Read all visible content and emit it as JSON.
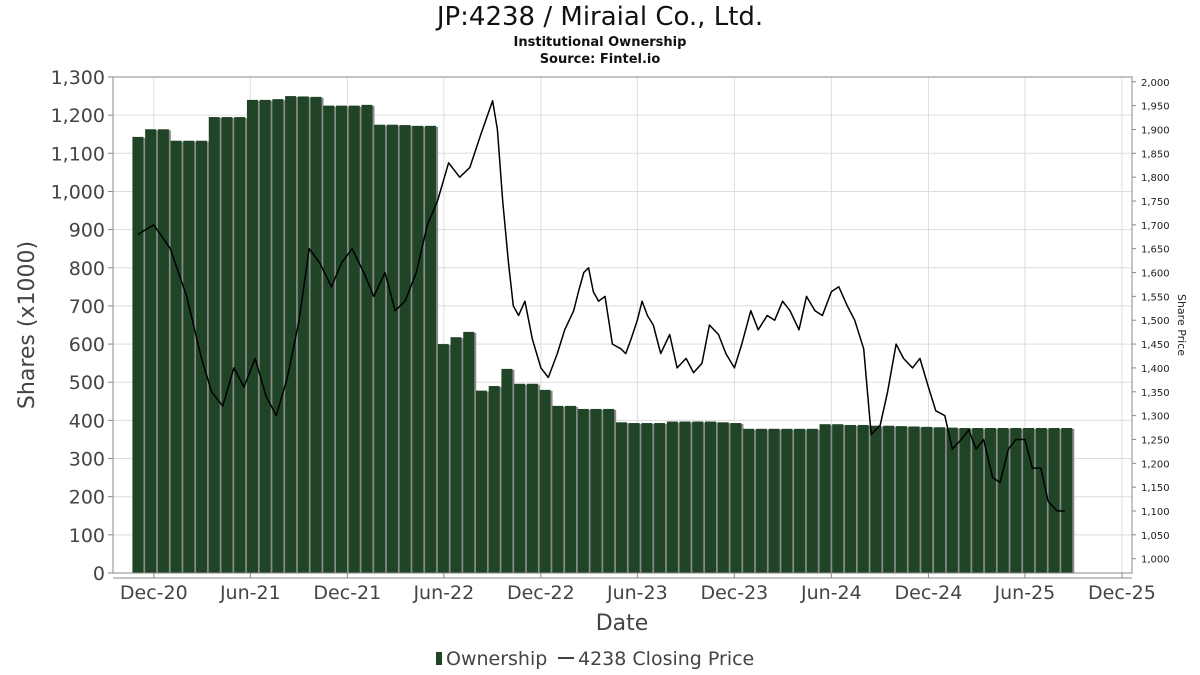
{
  "title": "JP:4238 / Miraial Co., Ltd.",
  "subtitle": "Institutional Ownership",
  "source": "Source: Fintel.io",
  "colors": {
    "bar": "#1f4426",
    "bar_shadow": "#8a8a8a",
    "line": "#000000",
    "grid": "#dddddd",
    "frame": "#888888"
  },
  "chart_data": {
    "type": "bar",
    "xlabel": "Date",
    "ylabel": "Shares (x1000)",
    "y2label": "Share Price",
    "ylim": [
      0,
      1300
    ],
    "y2lim": [
      970,
      2010
    ],
    "xlim": [
      "2020-09-15",
      "2025-12-20"
    ],
    "xticks": [
      {
        "date": "2020-12-01",
        "label": "Dec-20"
      },
      {
        "date": "2021-06-01",
        "label": "Jun-21"
      },
      {
        "date": "2021-12-01",
        "label": "Dec-21"
      },
      {
        "date": "2022-06-01",
        "label": "Jun-22"
      },
      {
        "date": "2022-12-01",
        "label": "Dec-22"
      },
      {
        "date": "2023-06-01",
        "label": "Jun-23"
      },
      {
        "date": "2023-12-01",
        "label": "Dec-23"
      },
      {
        "date": "2024-06-01",
        "label": "Jun-24"
      },
      {
        "date": "2024-12-01",
        "label": "Dec-24"
      },
      {
        "date": "2025-06-01",
        "label": "Jun-25"
      },
      {
        "date": "2025-12-01",
        "label": "Dec-25"
      }
    ],
    "yticks": [
      {
        "value": 0,
        "label": "0"
      },
      {
        "value": 100,
        "label": "100"
      },
      {
        "value": 200,
        "label": "200"
      },
      {
        "value": 300,
        "label": "300"
      },
      {
        "value": 400,
        "label": "400"
      },
      {
        "value": 500,
        "label": "500"
      },
      {
        "value": 600,
        "label": "600"
      },
      {
        "value": 700,
        "label": "700"
      },
      {
        "value": 800,
        "label": "800"
      },
      {
        "value": 900,
        "label": "900"
      },
      {
        "value": 1000,
        "label": "1,000"
      },
      {
        "value": 1100,
        "label": "1,100"
      },
      {
        "value": 1200,
        "label": "1,200"
      },
      {
        "value": 1300,
        "label": "1,300"
      }
    ],
    "y2ticks": [
      {
        "value": 1000,
        "label": "1,000"
      },
      {
        "value": 1050,
        "label": "1,050"
      },
      {
        "value": 1100,
        "label": "1,100"
      },
      {
        "value": 1150,
        "label": "1,150"
      },
      {
        "value": 1200,
        "label": "1,200"
      },
      {
        "value": 1250,
        "label": "1,250"
      },
      {
        "value": 1300,
        "label": "1,300"
      },
      {
        "value": 1350,
        "label": "1,350"
      },
      {
        "value": 1400,
        "label": "1,400"
      },
      {
        "value": 1450,
        "label": "1,450"
      },
      {
        "value": 1500,
        "label": "1,500"
      },
      {
        "value": 1550,
        "label": "1,550"
      },
      {
        "value": 1600,
        "label": "1,600"
      },
      {
        "value": 1650,
        "label": "1,650"
      },
      {
        "value": 1700,
        "label": "1,700"
      },
      {
        "value": 1750,
        "label": "1,750"
      },
      {
        "value": 1800,
        "label": "1,800"
      },
      {
        "value": 1850,
        "label": "1,850"
      },
      {
        "value": 1900,
        "label": "1,900"
      },
      {
        "value": 1950,
        "label": "1,950"
      },
      {
        "value": 2000,
        "label": "2,000"
      }
    ],
    "legend": {
      "position": "bottom",
      "items": [
        {
          "label": "Ownership",
          "kind": "bar"
        },
        {
          "label": "4238 Closing Price",
          "kind": "line"
        }
      ]
    },
    "series": [
      {
        "name": "Ownership",
        "kind": "bar",
        "x": [
          "2020-11-01",
          "2020-11-25",
          "2020-12-19",
          "2021-01-12",
          "2021-02-05",
          "2021-03-01",
          "2021-03-25",
          "2021-04-18",
          "2021-05-12",
          "2021-06-05",
          "2021-06-29",
          "2021-07-23",
          "2021-08-16",
          "2021-09-09",
          "2021-10-03",
          "2021-10-27",
          "2021-11-20",
          "2021-12-14",
          "2022-01-07",
          "2022-01-31",
          "2022-02-24",
          "2022-03-20",
          "2022-04-13",
          "2022-05-07",
          "2022-05-31",
          "2022-06-24",
          "2022-07-18",
          "2022-08-11",
          "2022-09-04",
          "2022-09-28",
          "2022-10-22",
          "2022-11-15",
          "2022-12-09",
          "2023-01-02",
          "2023-01-26",
          "2023-02-19",
          "2023-03-15",
          "2023-04-08",
          "2023-05-02",
          "2023-05-26",
          "2023-06-19",
          "2023-07-13",
          "2023-08-06",
          "2023-08-30",
          "2023-09-23",
          "2023-10-17",
          "2023-11-10",
          "2023-12-04",
          "2023-12-28",
          "2024-01-21",
          "2024-02-14",
          "2024-03-09",
          "2024-04-02",
          "2024-04-26",
          "2024-05-20",
          "2024-06-13",
          "2024-07-07",
          "2024-07-31",
          "2024-08-24",
          "2024-09-17",
          "2024-10-11",
          "2024-11-04",
          "2024-11-28",
          "2024-12-22",
          "2025-01-15",
          "2025-02-08",
          "2025-03-04",
          "2025-03-28",
          "2025-04-21",
          "2025-05-15",
          "2025-06-08",
          "2025-07-02",
          "2025-07-26",
          "2025-08-19"
        ],
        "values": [
          1143,
          1163,
          1163,
          1133,
          1133,
          1133,
          1195,
          1195,
          1195,
          1240,
          1240,
          1242,
          1250,
          1249,
          1248,
          1225,
          1225,
          1225,
          1227,
          1175,
          1175,
          1174,
          1172,
          1172,
          600,
          618,
          632,
          478,
          490,
          535,
          496,
          496,
          480,
          438,
          438,
          430,
          430,
          430,
          395,
          393,
          393,
          393,
          397,
          397,
          397,
          397,
          395,
          393,
          378,
          378,
          378,
          378,
          378,
          378,
          390,
          390,
          388,
          388,
          386,
          386,
          385,
          384,
          383,
          382,
          381,
          380,
          380,
          380,
          380,
          380,
          380,
          380,
          380,
          380
        ]
      },
      {
        "name": "4238 Closing Price",
        "kind": "line",
        "x": [
          "2020-11-01",
          "2020-12-01",
          "2021-01-01",
          "2021-02-01",
          "2021-03-01",
          "2021-03-20",
          "2021-04-10",
          "2021-05-01",
          "2021-05-20",
          "2021-06-10",
          "2021-07-01",
          "2021-07-20",
          "2021-08-10",
          "2021-09-01",
          "2021-09-20",
          "2021-10-10",
          "2021-11-01",
          "2021-11-20",
          "2021-12-10",
          "2022-01-01",
          "2022-01-20",
          "2022-02-10",
          "2022-03-01",
          "2022-03-20",
          "2022-04-10",
          "2022-05-01",
          "2022-05-20",
          "2022-06-10",
          "2022-07-01",
          "2022-07-20",
          "2022-08-10",
          "2022-09-01",
          "2022-09-10",
          "2022-09-20",
          "2022-10-01",
          "2022-10-10",
          "2022-10-20",
          "2022-11-01",
          "2022-11-15",
          "2022-12-01",
          "2022-12-15",
          "2023-01-01",
          "2023-01-15",
          "2023-02-01",
          "2023-02-10",
          "2023-02-20",
          "2023-03-01",
          "2023-03-10",
          "2023-03-20",
          "2023-04-01",
          "2023-04-15",
          "2023-05-01",
          "2023-05-10",
          "2023-05-20",
          "2023-06-01",
          "2023-06-10",
          "2023-06-20",
          "2023-07-01",
          "2023-07-15",
          "2023-08-01",
          "2023-08-15",
          "2023-09-01",
          "2023-09-15",
          "2023-10-01",
          "2023-10-15",
          "2023-11-01",
          "2023-11-15",
          "2023-12-01",
          "2023-12-15",
          "2024-01-01",
          "2024-01-15",
          "2024-02-01",
          "2024-02-15",
          "2024-03-01",
          "2024-03-15",
          "2024-04-01",
          "2024-04-15",
          "2024-05-01",
          "2024-05-15",
          "2024-06-01",
          "2024-06-15",
          "2024-07-01",
          "2024-07-15",
          "2024-08-01",
          "2024-08-15",
          "2024-09-01",
          "2024-09-15",
          "2024-10-01",
          "2024-10-15",
          "2024-11-01",
          "2024-11-15",
          "2024-12-01",
          "2024-12-15",
          "2025-01-01",
          "2025-01-15",
          "2025-02-01",
          "2025-02-15",
          "2025-03-01",
          "2025-03-15",
          "2025-04-01",
          "2025-04-15",
          "2025-05-01",
          "2025-05-15",
          "2025-06-01",
          "2025-06-15",
          "2025-07-01",
          "2025-07-15",
          "2025-08-01",
          "2025-08-15"
        ],
        "values": [
          1680,
          1700,
          1650,
          1550,
          1420,
          1350,
          1320,
          1400,
          1360,
          1420,
          1340,
          1300,
          1380,
          1500,
          1650,
          1620,
          1570,
          1620,
          1650,
          1600,
          1550,
          1600,
          1520,
          1540,
          1600,
          1700,
          1750,
          1830,
          1800,
          1820,
          1890,
          1960,
          1900,
          1750,
          1620,
          1530,
          1510,
          1540,
          1460,
          1400,
          1380,
          1430,
          1480,
          1520,
          1560,
          1600,
          1610,
          1560,
          1540,
          1550,
          1450,
          1440,
          1430,
          1460,
          1500,
          1540,
          1510,
          1490,
          1430,
          1470,
          1400,
          1420,
          1390,
          1410,
          1490,
          1470,
          1430,
          1400,
          1450,
          1520,
          1480,
          1510,
          1500,
          1540,
          1520,
          1480,
          1550,
          1520,
          1510,
          1560,
          1570,
          1530,
          1500,
          1440,
          1260,
          1280,
          1350,
          1450,
          1420,
          1400,
          1420,
          1360,
          1310,
          1300,
          1230,
          1250,
          1270,
          1230,
          1250,
          1170,
          1160,
          1230,
          1250,
          1250,
          1190,
          1190,
          1120,
          1100,
          1100
        ]
      }
    ]
  }
}
